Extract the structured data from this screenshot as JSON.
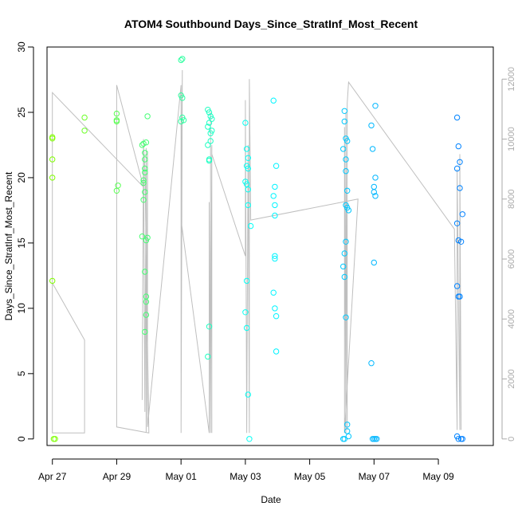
{
  "chart_data": {
    "type": "scatter",
    "title": "ATOM4 Southbound Days_Since_StratInf_Most_Recent",
    "xlabel": "Date",
    "ylabel": "Days_Since_StratInf_Most_Recent",
    "x_axis": {
      "type": "date",
      "range": [
        "2023-04-26T20:00",
        "2023-05-10T17:00"
      ],
      "ticks": [
        {
          "date": "2023-04-27T00:00",
          "label": "Apr 27"
        },
        {
          "date": "2023-04-29T00:00",
          "label": "Apr 29"
        },
        {
          "date": "2023-05-01T00:00",
          "label": "May 01"
        },
        {
          "date": "2023-05-03T00:00",
          "label": "May 03"
        },
        {
          "date": "2023-05-05T00:00",
          "label": "May 05"
        },
        {
          "date": "2023-05-07T00:00",
          "label": "May 07"
        },
        {
          "date": "2023-05-09T00:00",
          "label": "May 09"
        }
      ]
    },
    "y_axis": {
      "range": [
        -0.5,
        30
      ],
      "ticks": [
        0,
        5,
        10,
        15,
        20,
        25,
        30
      ]
    },
    "y2_axis": {
      "range": [
        0,
        12300
      ],
      "ticks": [
        0,
        2000,
        4000,
        6000,
        8000,
        10000,
        12000
      ],
      "color": "#aaaaaa"
    },
    "grid": false,
    "legend": "none",
    "colors": {
      "points_start": "#80ff00",
      "points_mid": "#00ffff",
      "points_end": "#0080ff",
      "line": "#bfbfbf"
    },
    "points": [
      {
        "x": "2023-04-27T00:00",
        "y": 23.1
      },
      {
        "x": "2023-04-27T00:00",
        "y": 23.0
      },
      {
        "x": "2023-04-27T00:00",
        "y": 21.4
      },
      {
        "x": "2023-04-27T00:00",
        "y": 20.0
      },
      {
        "x": "2023-04-27T00:00",
        "y": 12.1
      },
      {
        "x": "2023-04-27T01:00",
        "y": 0.0
      },
      {
        "x": "2023-04-27T02:00",
        "y": 0.0
      },
      {
        "x": "2023-04-28T00:00",
        "y": 24.6
      },
      {
        "x": "2023-04-28T00:00",
        "y": 23.6
      },
      {
        "x": "2023-04-29T00:00",
        "y": 24.9
      },
      {
        "x": "2023-04-29T00:00",
        "y": 24.4
      },
      {
        "x": "2023-04-29T00:00",
        "y": 24.3
      },
      {
        "x": "2023-04-29T01:00",
        "y": 19.4
      },
      {
        "x": "2023-04-29T00:00",
        "y": 19.0
      },
      {
        "x": "2023-04-29T19:00",
        "y": 22.5
      },
      {
        "x": "2023-04-29T20:00",
        "y": 22.6
      },
      {
        "x": "2023-04-29T20:00",
        "y": 19.8
      },
      {
        "x": "2023-04-29T20:00",
        "y": 19.6
      },
      {
        "x": "2023-04-29T20:00",
        "y": 18.3
      },
      {
        "x": "2023-04-29T19:00",
        "y": 15.5
      },
      {
        "x": "2023-04-29T21:00",
        "y": 20.4
      },
      {
        "x": "2023-04-29T21:00",
        "y": 20.7
      },
      {
        "x": "2023-04-29T21:00",
        "y": 21.4
      },
      {
        "x": "2023-04-29T21:00",
        "y": 21.9
      },
      {
        "x": "2023-04-29T21:00",
        "y": 18.9
      },
      {
        "x": "2023-04-29T21:00",
        "y": 12.8
      },
      {
        "x": "2023-04-29T22:00",
        "y": 22.7
      },
      {
        "x": "2023-04-29T22:00",
        "y": 15.2
      },
      {
        "x": "2023-04-29T22:00",
        "y": 10.9
      },
      {
        "x": "2023-04-29T22:00",
        "y": 10.5
      },
      {
        "x": "2023-04-29T22:00",
        "y": 9.5
      },
      {
        "x": "2023-04-29T21:00",
        "y": 8.2
      },
      {
        "x": "2023-04-29T23:00",
        "y": 24.7
      },
      {
        "x": "2023-04-29T23:00",
        "y": 15.4
      },
      {
        "x": "2023-05-01T00:00",
        "y": 29.0
      },
      {
        "x": "2023-05-01T01:00",
        "y": 29.1
      },
      {
        "x": "2023-05-01T00:00",
        "y": 26.3
      },
      {
        "x": "2023-05-01T01:00",
        "y": 26.1
      },
      {
        "x": "2023-05-01T01:00",
        "y": 24.6
      },
      {
        "x": "2023-05-01T02:00",
        "y": 24.4
      },
      {
        "x": "2023-05-01T00:00",
        "y": 24.3
      },
      {
        "x": "2023-05-01T20:00",
        "y": 25.2
      },
      {
        "x": "2023-05-01T21:00",
        "y": 25.0
      },
      {
        "x": "2023-05-01T22:00",
        "y": 24.7
      },
      {
        "x": "2023-05-01T23:00",
        "y": 24.5
      },
      {
        "x": "2023-05-01T21:00",
        "y": 24.2
      },
      {
        "x": "2023-05-01T20:00",
        "y": 23.9
      },
      {
        "x": "2023-05-01T22:00",
        "y": 23.4
      },
      {
        "x": "2023-05-01T23:00",
        "y": 23.6
      },
      {
        "x": "2023-05-01T22:00",
        "y": 22.8
      },
      {
        "x": "2023-05-01T20:00",
        "y": 22.5
      },
      {
        "x": "2023-05-01T21:00",
        "y": 21.4
      },
      {
        "x": "2023-05-01T21:00",
        "y": 21.3
      },
      {
        "x": "2023-05-01T21:00",
        "y": 8.6
      },
      {
        "x": "2023-05-01T20:00",
        "y": 6.3
      },
      {
        "x": "2023-05-03T00:00",
        "y": 24.2
      },
      {
        "x": "2023-05-03T01:00",
        "y": 22.2
      },
      {
        "x": "2023-05-03T02:00",
        "y": 21.5
      },
      {
        "x": "2023-05-03T01:00",
        "y": 20.9
      },
      {
        "x": "2023-05-03T02:00",
        "y": 20.7
      },
      {
        "x": "2023-05-03T00:00",
        "y": 19.7
      },
      {
        "x": "2023-05-03T01:00",
        "y": 19.5
      },
      {
        "x": "2023-05-03T02:00",
        "y": 19.1
      },
      {
        "x": "2023-05-03T02:00",
        "y": 17.9
      },
      {
        "x": "2023-05-03T04:00",
        "y": 16.3
      },
      {
        "x": "2023-05-03T01:00",
        "y": 12.1
      },
      {
        "x": "2023-05-03T00:00",
        "y": 9.7
      },
      {
        "x": "2023-05-03T01:00",
        "y": 8.5
      },
      {
        "x": "2023-05-03T02:00",
        "y": 3.4
      },
      {
        "x": "2023-05-03T03:00",
        "y": 0.0
      },
      {
        "x": "2023-05-03T21:00",
        "y": 25.9
      },
      {
        "x": "2023-05-03T23:00",
        "y": 20.9
      },
      {
        "x": "2023-05-03T22:00",
        "y": 19.3
      },
      {
        "x": "2023-05-03T21:00",
        "y": 18.6
      },
      {
        "x": "2023-05-03T22:00",
        "y": 17.9
      },
      {
        "x": "2023-05-03T22:00",
        "y": 17.1
      },
      {
        "x": "2023-05-03T22:00",
        "y": 14.0
      },
      {
        "x": "2023-05-03T22:00",
        "y": 13.8
      },
      {
        "x": "2023-05-03T21:00",
        "y": 11.2
      },
      {
        "x": "2023-05-03T22:00",
        "y": 10.0
      },
      {
        "x": "2023-05-03T23:00",
        "y": 9.4
      },
      {
        "x": "2023-05-03T23:00",
        "y": 6.7
      },
      {
        "x": "2023-05-06T01:00",
        "y": 22.2
      },
      {
        "x": "2023-05-06T02:00",
        "y": 25.1
      },
      {
        "x": "2023-05-06T02:00",
        "y": 24.3
      },
      {
        "x": "2023-05-06T03:00",
        "y": 23.0
      },
      {
        "x": "2023-05-06T04:00",
        "y": 22.8
      },
      {
        "x": "2023-05-06T03:00",
        "y": 21.4
      },
      {
        "x": "2023-05-06T03:00",
        "y": 20.5
      },
      {
        "x": "2023-05-06T04:00",
        "y": 19.0
      },
      {
        "x": "2023-05-06T03:00",
        "y": 17.9
      },
      {
        "x": "2023-05-06T04:00",
        "y": 17.7
      },
      {
        "x": "2023-05-06T05:00",
        "y": 17.5
      },
      {
        "x": "2023-05-06T03:00",
        "y": 15.1
      },
      {
        "x": "2023-05-06T02:00",
        "y": 14.2
      },
      {
        "x": "2023-05-06T01:00",
        "y": 13.2
      },
      {
        "x": "2023-05-06T02:00",
        "y": 12.4
      },
      {
        "x": "2023-05-06T03:00",
        "y": 9.3
      },
      {
        "x": "2023-05-06T04:00",
        "y": 1.1
      },
      {
        "x": "2023-05-06T04:00",
        "y": 0.6
      },
      {
        "x": "2023-05-06T01:00",
        "y": 0.0
      },
      {
        "x": "2023-05-06T02:00",
        "y": 0.0
      },
      {
        "x": "2023-05-06T05:00",
        "y": 0.2
      },
      {
        "x": "2023-05-06T22:00",
        "y": 24.0
      },
      {
        "x": "2023-05-06T23:00",
        "y": 22.2
      },
      {
        "x": "2023-05-07T01:00",
        "y": 25.5
      },
      {
        "x": "2023-05-07T01:00",
        "y": 20.0
      },
      {
        "x": "2023-05-07T00:00",
        "y": 19.3
      },
      {
        "x": "2023-05-07T00:00",
        "y": 18.9
      },
      {
        "x": "2023-05-07T01:00",
        "y": 18.6
      },
      {
        "x": "2023-05-07T00:00",
        "y": 13.5
      },
      {
        "x": "2023-05-06T22:00",
        "y": 5.8
      },
      {
        "x": "2023-05-06T23:00",
        "y": 0.0
      },
      {
        "x": "2023-05-07T00:00",
        "y": 0.0
      },
      {
        "x": "2023-05-07T01:00",
        "y": 0.0
      },
      {
        "x": "2023-05-07T02:00",
        "y": 0.0
      },
      {
        "x": "2023-05-09T14:00",
        "y": 24.6
      },
      {
        "x": "2023-05-09T15:00",
        "y": 22.4
      },
      {
        "x": "2023-05-09T16:00",
        "y": 21.2
      },
      {
        "x": "2023-05-09T14:00",
        "y": 20.7
      },
      {
        "x": "2023-05-09T16:00",
        "y": 19.2
      },
      {
        "x": "2023-05-09T18:00",
        "y": 17.2
      },
      {
        "x": "2023-05-09T14:00",
        "y": 16.5
      },
      {
        "x": "2023-05-09T15:00",
        "y": 15.2
      },
      {
        "x": "2023-05-09T17:00",
        "y": 15.1
      },
      {
        "x": "2023-05-09T14:00",
        "y": 11.7
      },
      {
        "x": "2023-05-09T16:00",
        "y": 10.9
      },
      {
        "x": "2023-05-09T15:00",
        "y": 10.9
      },
      {
        "x": "2023-05-09T14:00",
        "y": 0.2
      },
      {
        "x": "2023-05-09T15:00",
        "y": 0.0
      },
      {
        "x": "2023-05-09T17:00",
        "y": 0.0
      },
      {
        "x": "2023-05-09T18:00",
        "y": 0.0
      }
    ],
    "line_series": [
      {
        "x": "2023-04-27T00:00",
        "y2": 200
      },
      {
        "x": "2023-04-27T00:00",
        "y2": 5200
      },
      {
        "x": "2023-04-28T00:00",
        "y2": 3300
      },
      {
        "x": "2023-04-28T00:00",
        "y2": 200
      },
      {
        "x": "2023-04-28T00:00",
        "y2": 200
      },
      {
        "x": "2023-04-27T00:00",
        "y2": 200
      },
      {
        "x": "2023-04-27T00:00",
        "y2": 11550
      },
      {
        "x": "2023-04-29T20:00",
        "y2": 8400
      },
      {
        "x": "2023-04-29T00:00",
        "y2": 11800
      },
      {
        "x": "2023-04-29T00:00",
        "y2": 400
      },
      {
        "x": "2023-04-30T00:00",
        "y2": 200
      },
      {
        "x": "2023-04-29T21:00",
        "y2": 9000
      },
      {
        "x": "2023-04-29T20:00",
        "y2": 9800
      },
      {
        "x": "2023-04-29T19:00",
        "y2": 1300
      },
      {
        "x": "2023-04-29T20:00",
        "y2": 10000
      },
      {
        "x": "2023-04-29T21:00",
        "y2": 900
      },
      {
        "x": "2023-04-29T22:00",
        "y2": 9700
      },
      {
        "x": "2023-04-29T22:00",
        "y2": 200
      },
      {
        "x": "2023-04-29T23:00",
        "y2": 9600
      },
      {
        "x": "2023-04-29T23:00",
        "y2": 400
      },
      {
        "x": "2023-05-01T00:00",
        "y2": 11800
      },
      {
        "x": "2023-05-01T00:00",
        "y2": 200
      },
      {
        "x": "2023-05-01T01:00",
        "y2": 12300
      },
      {
        "x": "2023-05-01T00:00",
        "y2": 7300
      },
      {
        "x": "2023-05-01T21:00",
        "y2": 200
      },
      {
        "x": "2023-05-01T21:00",
        "y2": 7900
      },
      {
        "x": "2023-05-01T22:00",
        "y2": 200
      },
      {
        "x": "2023-05-01T22:00",
        "y2": 10900
      },
      {
        "x": "2023-05-01T22:00",
        "y2": 200
      },
      {
        "x": "2023-05-01T23:00",
        "y2": 9800
      },
      {
        "x": "2023-05-01T23:00",
        "y2": 200
      },
      {
        "x": "2023-05-01T23:00",
        "y2": 9500
      },
      {
        "x": "2023-05-03T00:00",
        "y2": 6100
      },
      {
        "x": "2023-05-03T00:00",
        "y2": 11300
      },
      {
        "x": "2023-05-03T01:00",
        "y2": 200
      },
      {
        "x": "2023-05-03T02:00",
        "y2": 9800
      },
      {
        "x": "2023-05-03T03:00",
        "y2": 200
      },
      {
        "x": "2023-05-03T03:00",
        "y2": 12000
      },
      {
        "x": "2023-05-03T04:00",
        "y2": 7300
      },
      {
        "x": "2023-05-06T12:00",
        "y2": 8000
      },
      {
        "x": "2023-05-06T02:00",
        "y2": 200
      },
      {
        "x": "2023-05-06T02:00",
        "y2": 10400
      },
      {
        "x": "2023-05-06T03:00",
        "y2": 200
      },
      {
        "x": "2023-05-06T03:00",
        "y2": 10900
      },
      {
        "x": "2023-05-06T04:00",
        "y2": 300
      },
      {
        "x": "2023-05-06T04:00",
        "y2": 11200
      },
      {
        "x": "2023-05-06T05:00",
        "y2": 11900
      },
      {
        "x": "2023-05-09T12:00",
        "y2": 7000
      },
      {
        "x": "2023-05-09T14:00",
        "y2": 300
      },
      {
        "x": "2023-05-09T14:00",
        "y2": 9000
      },
      {
        "x": "2023-05-09T16:00",
        "y2": 300
      },
      {
        "x": "2023-05-09T16:00",
        "y2": 9500
      },
      {
        "x": "2023-05-09T17:00",
        "y2": 300
      }
    ]
  }
}
